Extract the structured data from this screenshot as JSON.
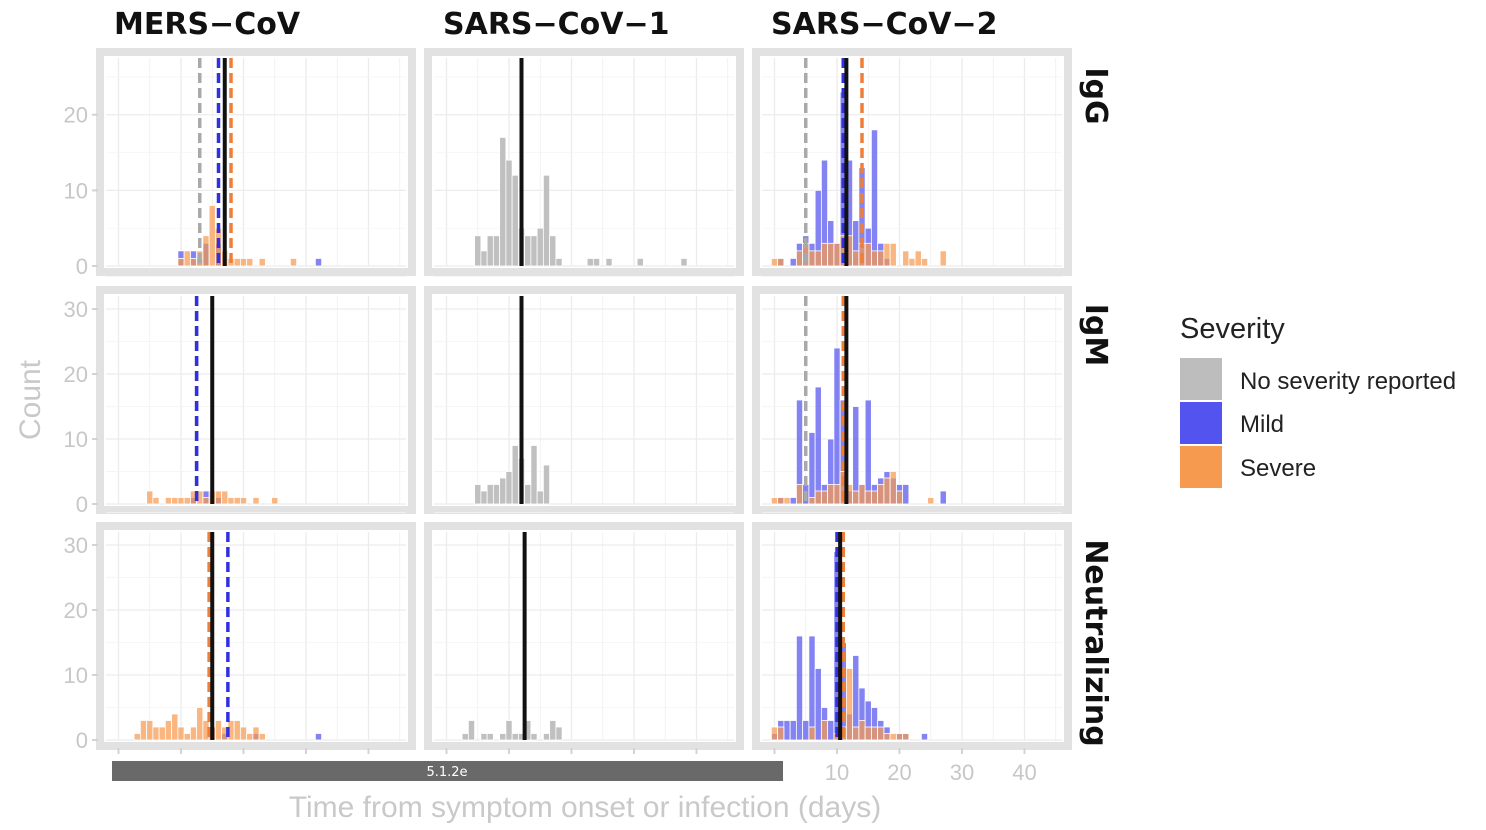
{
  "chart_data": {
    "type": "histogram-facet",
    "columns": [
      "MERS−CoV",
      "SARS−CoV−1",
      "SARS−CoV−2"
    ],
    "rows": [
      "IgG",
      "IgM",
      "Neutralizing"
    ],
    "xlabel": "Time from symptom onset or infection (days)",
    "ylabel": "Count",
    "xlim": [
      -2,
      46
    ],
    "x_ticks": [
      10,
      20,
      30,
      40
    ],
    "x_tick_labels": [
      "10",
      "20",
      "30",
      "40"
    ],
    "y_ticks": {
      "IgG": [
        0,
        10,
        20
      ],
      "IgM": [
        0,
        10,
        20,
        30
      ],
      "Neutralizing": [
        0,
        10,
        20,
        30
      ]
    },
    "ylim": {
      "IgG": [
        0,
        27.5
      ],
      "IgM": [
        0,
        32
      ],
      "Neutralizing": [
        0,
        32
      ]
    },
    "grid": true,
    "legend": {
      "title": "Severity",
      "position": "right",
      "entries": [
        {
          "label": "No severity reported",
          "color": "#bdbdbd"
        },
        {
          "label": "Mild",
          "color": "#5353f0"
        },
        {
          "label": "Severe",
          "color": "#f69a50"
        }
      ]
    },
    "footer_bar_label": "5.1.2e",
    "panels": [
      {
        "row": "IgG",
        "col": "MERS−CoV",
        "series": {
          "none": [
            [
              13,
              1
            ],
            [
              14,
              3
            ]
          ],
          "mild": [
            [
              10,
              2
            ],
            [
              12,
              2
            ],
            [
              14,
              3
            ],
            [
              16,
              3
            ],
            [
              32,
              1
            ]
          ],
          "severe": [
            [
              10,
              1
            ],
            [
              11,
              2
            ],
            [
              12,
              1
            ],
            [
              13,
              2
            ],
            [
              14,
              4
            ],
            [
              15,
              8
            ],
            [
              16,
              5
            ],
            [
              17,
              2
            ],
            [
              18,
              1
            ],
            [
              19,
              1
            ],
            [
              20,
              1
            ],
            [
              21,
              1
            ],
            [
              23,
              1
            ],
            [
              28,
              1
            ]
          ]
        },
        "lines": {
          "none": 13,
          "mild": 16,
          "severe": 18,
          "overall": 17
        }
      },
      {
        "row": "IgG",
        "col": "SARS−CoV−1",
        "series": {
          "none": [
            [
              5,
              4
            ],
            [
              6,
              2
            ],
            [
              7,
              4
            ],
            [
              8,
              4
            ],
            [
              9,
              17
            ],
            [
              10,
              14
            ],
            [
              11,
              12
            ],
            [
              12,
              5
            ],
            [
              13,
              4
            ],
            [
              14,
              4
            ],
            [
              15,
              5
            ],
            [
              16,
              12
            ],
            [
              17,
              4
            ],
            [
              18,
              1
            ],
            [
              23,
              1
            ],
            [
              24,
              1
            ],
            [
              26,
              1
            ],
            [
              31,
              1
            ],
            [
              38,
              1
            ]
          ]
        },
        "lines": {
          "overall": 12
        }
      },
      {
        "row": "IgG",
        "col": "SARS−CoV−2",
        "series": {
          "mild": [
            [
              1,
              1
            ],
            [
              3,
              1
            ],
            [
              4,
              3
            ],
            [
              5,
              4
            ],
            [
              6,
              3
            ],
            [
              7,
              10
            ],
            [
              8,
              14
            ],
            [
              9,
              6
            ],
            [
              10,
              3
            ],
            [
              11,
              23
            ],
            [
              12,
              14
            ],
            [
              13,
              6
            ],
            [
              14,
              13
            ],
            [
              15,
              5
            ],
            [
              16,
              18
            ],
            [
              17,
              3
            ],
            [
              18,
              1
            ]
          ],
          "severe": [
            [
              0,
              1
            ],
            [
              1,
              1
            ],
            [
              4,
              2
            ],
            [
              5,
              3
            ],
            [
              6,
              2
            ],
            [
              7,
              2
            ],
            [
              8,
              3
            ],
            [
              9,
              3
            ],
            [
              10,
              3
            ],
            [
              11,
              4
            ],
            [
              12,
              4
            ],
            [
              13,
              2
            ],
            [
              14,
              3
            ],
            [
              15,
              3
            ],
            [
              16,
              2
            ],
            [
              17,
              2
            ],
            [
              18,
              3
            ],
            [
              19,
              3
            ],
            [
              21,
              2
            ],
            [
              22,
              1
            ],
            [
              23,
              2
            ],
            [
              24,
              1
            ],
            [
              27,
              2
            ]
          ]
        },
        "lines": {
          "none": 5,
          "mild": 11,
          "severe": 14,
          "overall": 11.5
        }
      },
      {
        "row": "IgM",
        "col": "MERS−CoV",
        "series": {
          "mild": [
            [
              12,
              1
            ],
            [
              14,
              2
            ],
            [
              16,
              1
            ]
          ],
          "severe": [
            [
              5,
              2
            ],
            [
              6,
              1
            ],
            [
              8,
              1
            ],
            [
              9,
              1
            ],
            [
              10,
              1
            ],
            [
              11,
              1
            ],
            [
              12,
              2
            ],
            [
              13,
              2
            ],
            [
              14,
              1
            ],
            [
              15,
              2
            ],
            [
              16,
              2
            ],
            [
              17,
              2
            ],
            [
              18,
              1
            ],
            [
              19,
              1
            ],
            [
              20,
              1
            ],
            [
              22,
              1
            ],
            [
              25,
              1
            ]
          ]
        },
        "lines": {
          "none": 12.5,
          "mild": 12.5,
          "severe": 15,
          "overall": 15
        }
      },
      {
        "row": "IgM",
        "col": "SARS−CoV−1",
        "series": {
          "none": [
            [
              5,
              3
            ],
            [
              6,
              2
            ],
            [
              7,
              3
            ],
            [
              8,
              3
            ],
            [
              9,
              4
            ],
            [
              10,
              5
            ],
            [
              11,
              9
            ],
            [
              12,
              7
            ],
            [
              13,
              3
            ],
            [
              14,
              9
            ],
            [
              15,
              2
            ],
            [
              16,
              6
            ]
          ]
        },
        "lines": {
          "overall": 12
        }
      },
      {
        "row": "IgM",
        "col": "SARS−CoV−2",
        "series": {
          "mild": [
            [
              1,
              1
            ],
            [
              3,
              1
            ],
            [
              4,
              16
            ],
            [
              5,
              3
            ],
            [
              6,
              11
            ],
            [
              7,
              18
            ],
            [
              8,
              3
            ],
            [
              9,
              10
            ],
            [
              10,
              24
            ],
            [
              11,
              16
            ],
            [
              12,
              2
            ],
            [
              13,
              15
            ],
            [
              14,
              3
            ],
            [
              15,
              16
            ],
            [
              16,
              3
            ],
            [
              17,
              4
            ],
            [
              18,
              5
            ],
            [
              19,
              4
            ],
            [
              20,
              3
            ],
            [
              21,
              3
            ],
            [
              27,
              2
            ]
          ],
          "severe": [
            [
              0,
              1
            ],
            [
              1,
              1
            ],
            [
              2,
              1
            ],
            [
              4,
              3
            ],
            [
              6,
              1
            ],
            [
              7,
              2
            ],
            [
              8,
              2
            ],
            [
              9,
              3
            ],
            [
              10,
              3
            ],
            [
              11,
              5
            ],
            [
              12,
              3
            ],
            [
              13,
              2
            ],
            [
              14,
              3
            ],
            [
              15,
              2
            ],
            [
              16,
              2
            ],
            [
              17,
              3
            ],
            [
              18,
              4
            ],
            [
              19,
              5
            ],
            [
              20,
              2
            ],
            [
              25,
              1
            ]
          ]
        },
        "lines": {
          "none": 5,
          "mild": 11,
          "severe": 11,
          "overall": 11.5
        }
      },
      {
        "row": "Neutralizing",
        "col": "MERS−CoV",
        "series": {
          "mild": [
            [
              15,
              2
            ],
            [
              17,
              1
            ],
            [
              22,
              1
            ],
            [
              32,
              1
            ]
          ],
          "severe": [
            [
              3,
              1
            ],
            [
              4,
              3
            ],
            [
              5,
              3
            ],
            [
              6,
              2
            ],
            [
              7,
              2
            ],
            [
              8,
              3
            ],
            [
              9,
              4
            ],
            [
              10,
              2
            ],
            [
              11,
              1
            ],
            [
              12,
              2
            ],
            [
              13,
              5
            ],
            [
              14,
              3
            ],
            [
              15,
              2
            ],
            [
              16,
              3
            ],
            [
              17,
              2
            ],
            [
              18,
              3
            ],
            [
              19,
              3
            ],
            [
              20,
              2
            ],
            [
              21,
              1
            ],
            [
              22,
              2
            ],
            [
              23,
              1
            ]
          ]
        },
        "lines": {
          "severe": 14.5,
          "mild": 17.5,
          "overall": 15
        }
      },
      {
        "row": "Neutralizing",
        "col": "SARS−CoV−1",
        "series": {
          "none": [
            [
              3,
              1
            ],
            [
              4,
              3
            ],
            [
              6,
              1
            ],
            [
              7,
              1
            ],
            [
              9,
              1
            ],
            [
              10,
              3
            ],
            [
              11,
              1
            ],
            [
              12,
              1
            ],
            [
              13,
              3
            ],
            [
              14,
              1
            ],
            [
              16,
              1
            ],
            [
              17,
              3
            ],
            [
              18,
              2
            ]
          ]
        },
        "lines": {
          "overall": 12.5
        }
      },
      {
        "row": "Neutralizing",
        "col": "SARS−CoV−2",
        "series": {
          "mild": [
            [
              0,
              1
            ],
            [
              1,
              3
            ],
            [
              2,
              3
            ],
            [
              3,
              3
            ],
            [
              4,
              16
            ],
            [
              5,
              3
            ],
            [
              6,
              16
            ],
            [
              7,
              11
            ],
            [
              8,
              5
            ],
            [
              9,
              3
            ],
            [
              10,
              29
            ],
            [
              11,
              15
            ],
            [
              12,
              4
            ],
            [
              13,
              13
            ],
            [
              14,
              8
            ],
            [
              15,
              6
            ],
            [
              16,
              5
            ],
            [
              17,
              3
            ],
            [
              18,
              2
            ],
            [
              20,
              1
            ],
            [
              21,
              1
            ],
            [
              24,
              1
            ]
          ],
          "severe": [
            [
              0,
              2
            ],
            [
              1,
              2
            ],
            [
              6,
              2
            ],
            [
              8,
              3
            ],
            [
              10,
              1
            ],
            [
              11,
              2
            ],
            [
              12,
              11
            ],
            [
              13,
              2
            ],
            [
              14,
              3
            ],
            [
              15,
              2
            ],
            [
              16,
              2
            ],
            [
              17,
              2
            ],
            [
              18,
              1
            ],
            [
              19,
              1
            ],
            [
              20,
              1
            ],
            [
              21,
              1
            ]
          ]
        },
        "lines": {
          "mild": 10,
          "severe": 11,
          "overall": 10.5
        }
      }
    ]
  }
}
